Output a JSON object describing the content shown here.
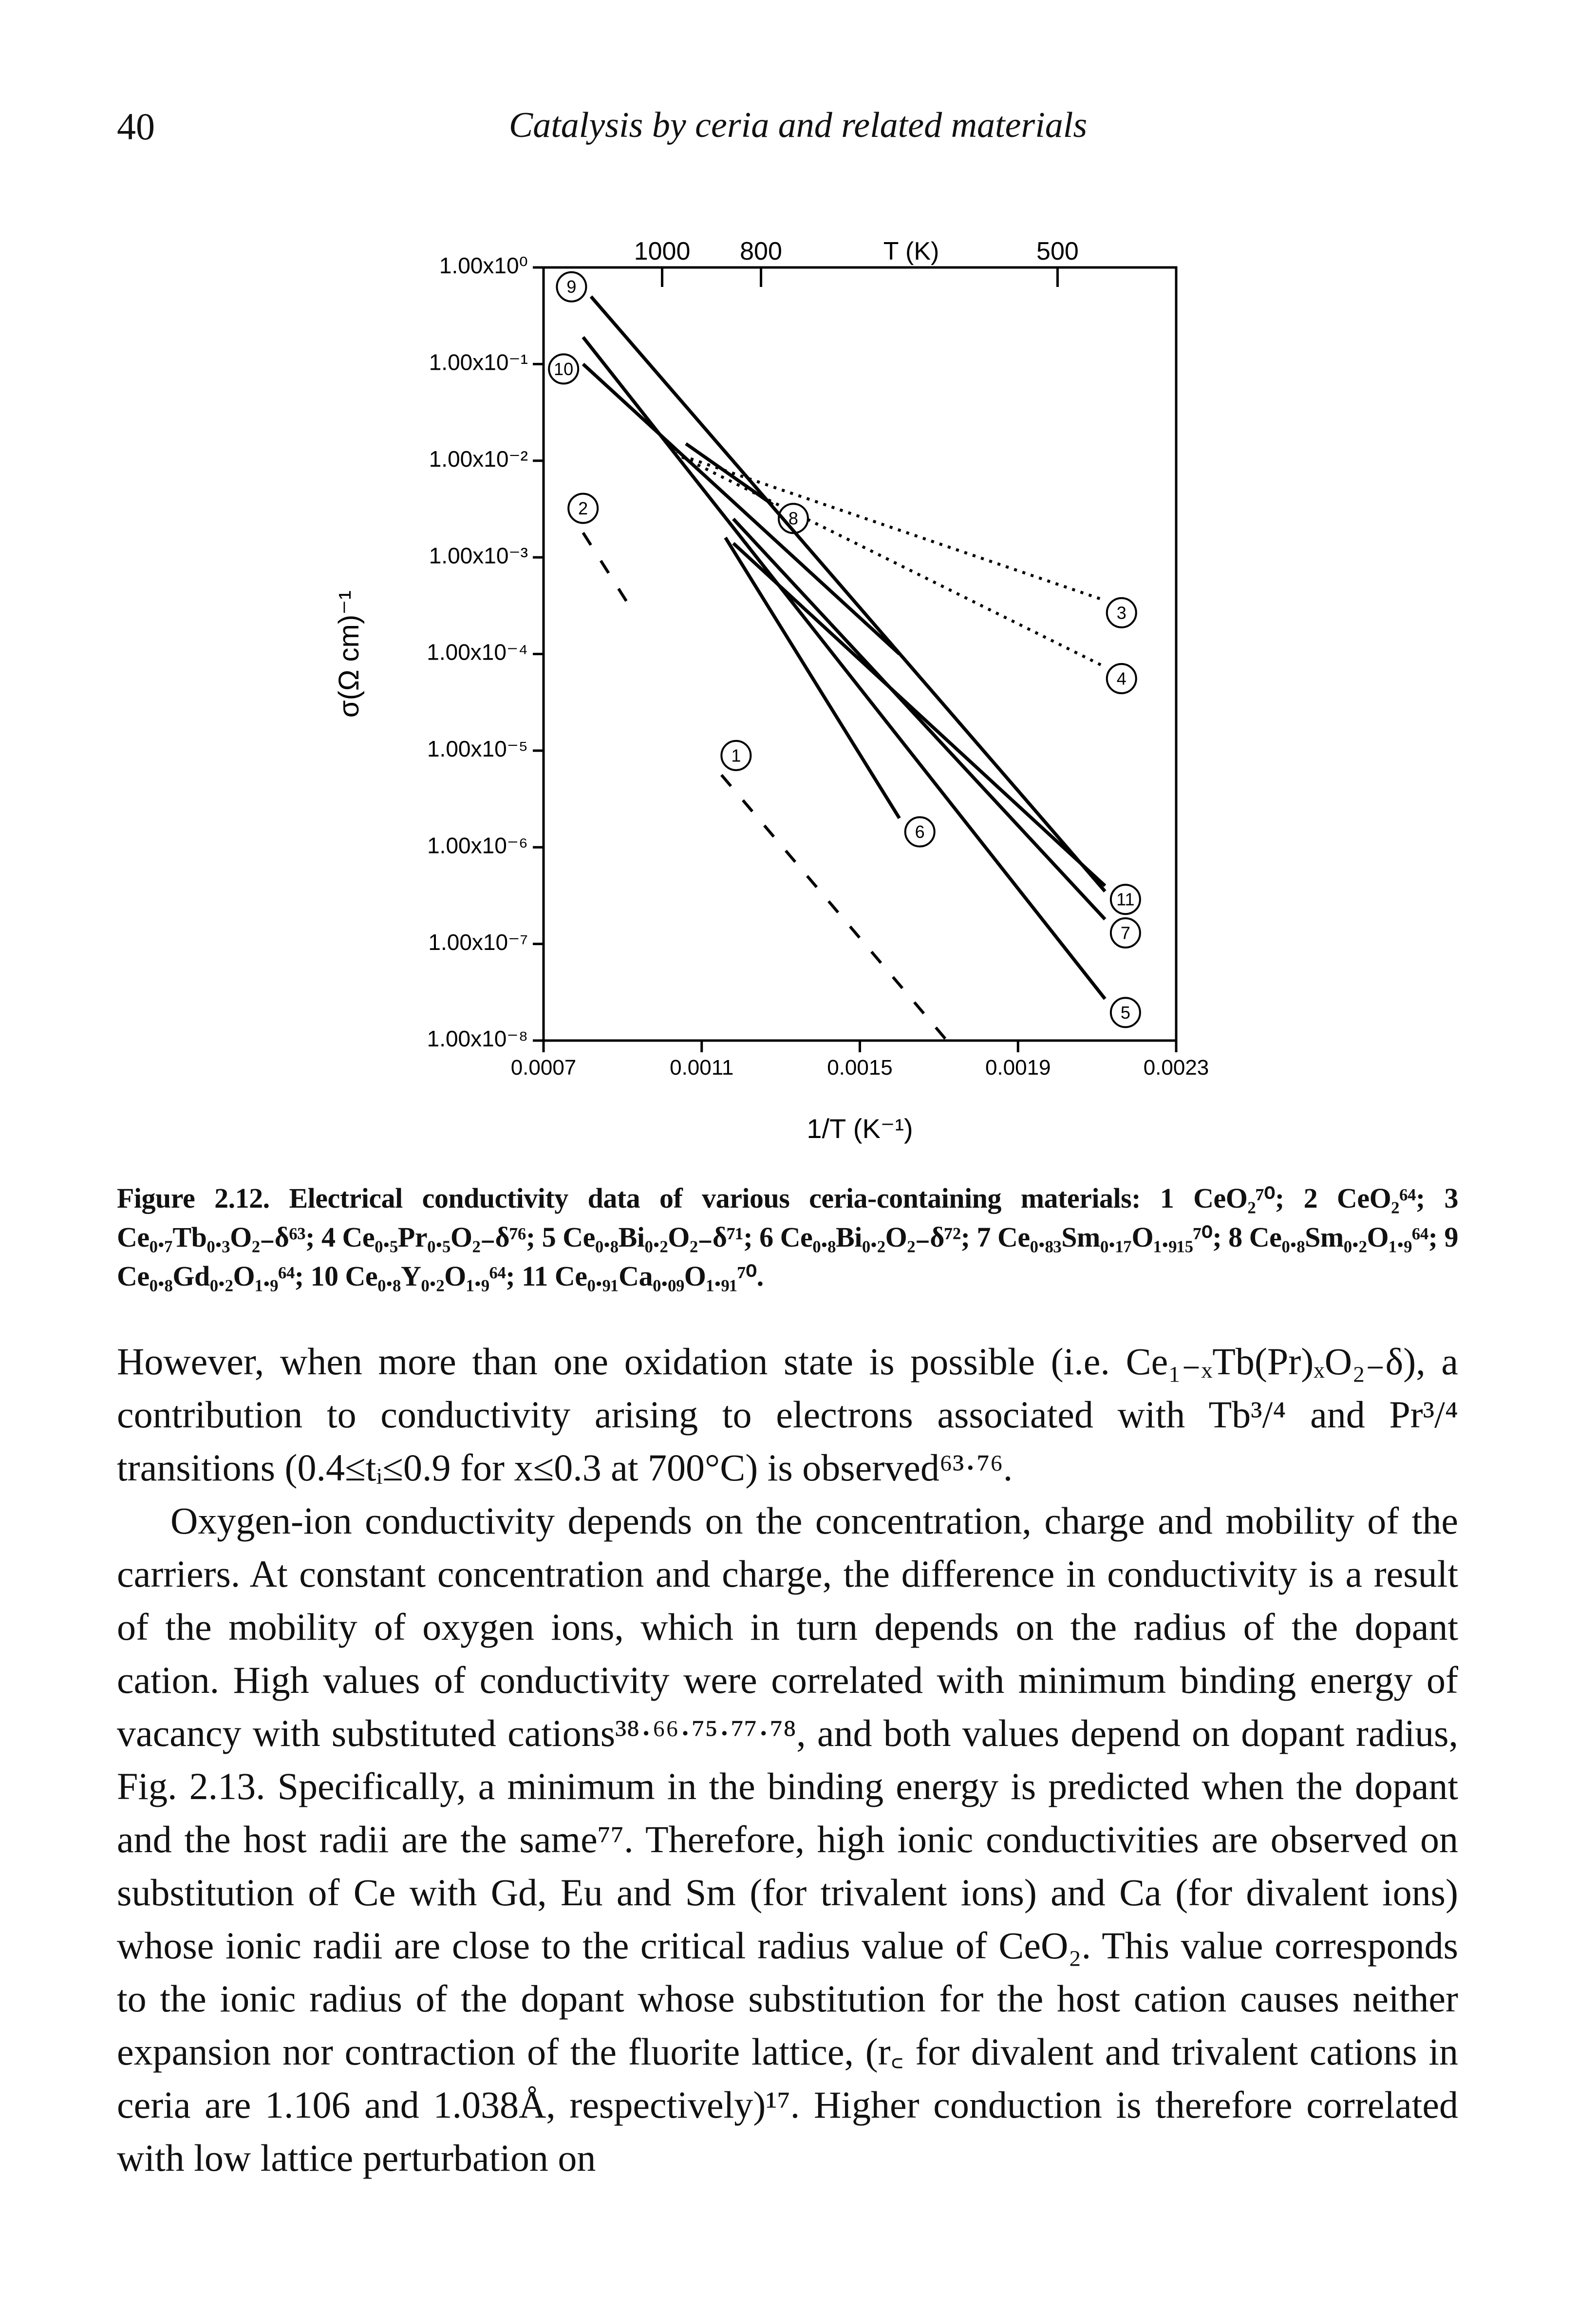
{
  "header": {
    "page_number": "40",
    "running_title": "Catalysis by ceria and related materials"
  },
  "chart_data": {
    "type": "line",
    "x_label": "1/T (K⁻¹)",
    "y_label": "σ(Ω cm)⁻¹",
    "x2_label": "T (K)",
    "log_y": true,
    "xlim": [
      0.0007,
      0.0023
    ],
    "xticks": [
      0.0007,
      0.0011,
      0.0015,
      0.0019,
      0.0023
    ],
    "x2ticks": [
      {
        "value": 0.001,
        "label": "1000"
      },
      {
        "value": 0.00125,
        "label": "800"
      },
      {
        "value": 0.002,
        "label": "500"
      }
    ],
    "ylim": [
      1e-08,
      1
    ],
    "yticks": [
      {
        "value": 1,
        "label": "1.00x10⁰"
      },
      {
        "value": 0.1,
        "label": "1.00x10⁻¹"
      },
      {
        "value": 0.01,
        "label": "1.00x10⁻²"
      },
      {
        "value": 0.001,
        "label": "1.00x10⁻³"
      },
      {
        "value": 0.0001,
        "label": "1.00x10⁻⁴"
      },
      {
        "value": 1e-05,
        "label": "1.00x10⁻⁵"
      },
      {
        "value": 1e-06,
        "label": "1.00x10⁻⁶"
      },
      {
        "value": 1e-07,
        "label": "1.00x10⁻⁷"
      },
      {
        "value": 1e-08,
        "label": "1.00x10⁻⁸"
      }
    ],
    "series": [
      {
        "name": "1",
        "color": "#000000",
        "line": "dashed",
        "x": [
          0.00115,
          0.00172
        ],
        "values": [
          5.6e-06,
          1e-08
        ]
      },
      {
        "name": "2",
        "color": "#000000",
        "line": "dashed",
        "x": [
          0.0008,
          0.00093
        ],
        "values": [
          0.0018,
          0.00026
        ]
      },
      {
        "name": "3",
        "color": "#000000",
        "line": "dotted",
        "x": [
          0.00103,
          0.00211
        ],
        "values": [
          0.012,
          0.00037
        ]
      },
      {
        "name": "4",
        "color": "#000000",
        "line": "dotted",
        "x": [
          0.00103,
          0.00211
        ],
        "values": [
          0.012,
          7.7e-05
        ]
      },
      {
        "name": "5",
        "color": "#000000",
        "line": "solid",
        "x": [
          0.0008,
          0.00212
        ],
        "values": [
          0.19,
          2.7e-08
        ]
      },
      {
        "name": "6",
        "color": "#000000",
        "line": "solid",
        "x": [
          0.00116,
          0.0016
        ],
        "values": [
          0.0016,
          2e-06
        ]
      },
      {
        "name": "7",
        "color": "#000000",
        "line": "solid",
        "x": [
          0.00118,
          0.00212
        ],
        "values": [
          0.0025,
          1.8e-07
        ]
      },
      {
        "name": "8",
        "color": "#000000",
        "line": "solid",
        "x": [
          0.00106,
          0.00128
        ],
        "values": [
          0.015,
          0.0035
        ]
      },
      {
        "name": "9",
        "color": "#000000",
        "line": "solid",
        "x": [
          0.00082,
          0.00212
        ],
        "values": [
          0.5,
          3.5e-07
        ]
      },
      {
        "name": "10",
        "color": "#000000",
        "line": "solid",
        "x": [
          0.0008,
          0.0016
        ],
        "values": [
          0.1,
          0.0001
        ]
      },
      {
        "name": "11",
        "color": "#000000",
        "line": "solid",
        "x": [
          0.00118,
          0.00212
        ],
        "values": [
          0.0014,
          4e-07
        ]
      }
    ]
  },
  "caption": {
    "label": "Figure 2.12.",
    "text": "Electrical conductivity data of various ceria-containing materials: 1 CeO₂⁷⁰; 2 CeO₂⁶⁴; 3 Ce₀.₇Tb₀.₃O₂₋δ⁶³; 4 Ce₀.₅Pr₀.₅O₂₋δ⁷⁶; 5 Ce₀.₈Bi₀.₂O₂₋δ⁷¹; 6 Ce₀.₈Bi₀.₂O₂₋δ⁷²; 7 Ce₀.₈₃Sm₀.₁₇O₁.₉₁₅⁷⁰; 8 Ce₀.₈Sm₀.₂O₁.₉⁶⁴; 9 Ce₀.₈Gd₀.₂O₁.₉⁶⁴; 10 Ce₀.₈Y₀.₂O₁.₉⁶⁴; 11 Ce₀.₉₁Ca₀.₀₉O₁.₉₁⁷⁰."
  },
  "body": {
    "paragraphs": [
      "However, when more than one oxidation state is possible (i.e. Ce₁₋ₓTb(Pr)ₓO₂₋δ), a contribution to conductivity arising to electrons associated with Tb³/⁴ and Pr³/⁴ transitions (0.4≤tᵢ≤0.9 for x≤0.3 at 700°C) is observed⁶³·⁷⁶.",
      "Oxygen-ion conductivity depends on the concentration, charge and mobility of the carriers. At constant concentration and charge, the difference in conductivity is a result of the mobility of oxygen ions, which in turn depends on the radius of the dopant cation. High values of conductivity were correlated with minimum binding energy of vacancy with substituted cations³⁸·⁶⁶·⁷⁵·⁷⁷·⁷⁸, and both values depend on dopant radius, Fig. 2.13. Specifically, a minimum in the binding energy is predicted when the dopant and the host radii are the same⁷⁷. Therefore, high ionic conductivities are observed on substitution of Ce with Gd, Eu and Sm (for trivalent ions) and Ca (for divalent ions) whose ionic radii are close to the critical radius value of CeO₂. This value corresponds to the ionic radius of the dopant whose substitution for the host cation causes neither expansion nor contraction of the fluorite lattice, (r꜀ for divalent and trivalent cations in ceria are 1.106 and 1.038Å, respectively)¹⁷. Higher conduction is therefore correlated with low lattice perturbation on"
    ]
  }
}
